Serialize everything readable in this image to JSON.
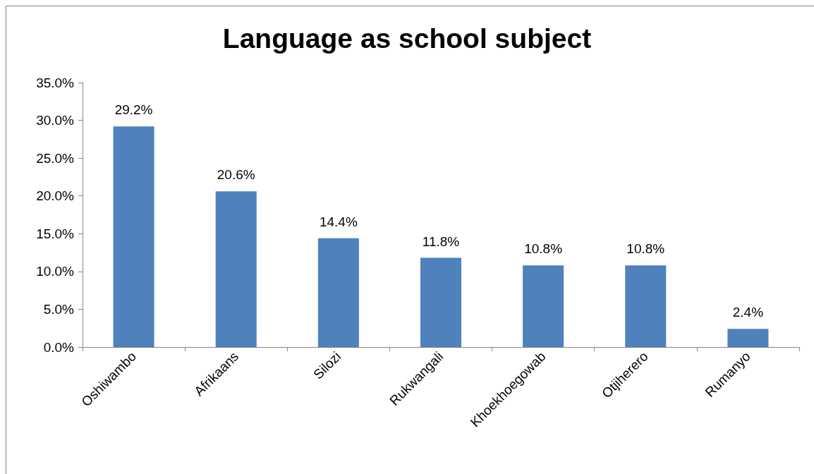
{
  "chart_data": {
    "type": "bar",
    "title": "Language as school subject",
    "categories": [
      "Oshiwambo",
      "Afrikaans",
      "Silozi",
      "Rukwangali",
      "Khoekhoegowab",
      "Otjiherero",
      "Rumanyo"
    ],
    "values": [
      29.2,
      20.6,
      14.4,
      11.8,
      10.8,
      10.8,
      2.4
    ],
    "value_labels": [
      "29.2%",
      "20.6%",
      "14.4%",
      "11.8%",
      "10.8%",
      "10.8%",
      "2.4%"
    ],
    "color": "#4f81bd",
    "ylim": [
      0,
      35
    ],
    "yticks": [
      {
        "value": 0,
        "label": "0.0%"
      },
      {
        "value": 5,
        "label": "5.0%"
      },
      {
        "value": 10,
        "label": "10.0%"
      },
      {
        "value": 15,
        "label": "15.0%"
      },
      {
        "value": 20,
        "label": "20.0%"
      },
      {
        "value": 25,
        "label": "25.0%"
      },
      {
        "value": 30,
        "label": "30.0%"
      },
      {
        "value": 35,
        "label": "35.0%"
      }
    ],
    "grid": false
  }
}
